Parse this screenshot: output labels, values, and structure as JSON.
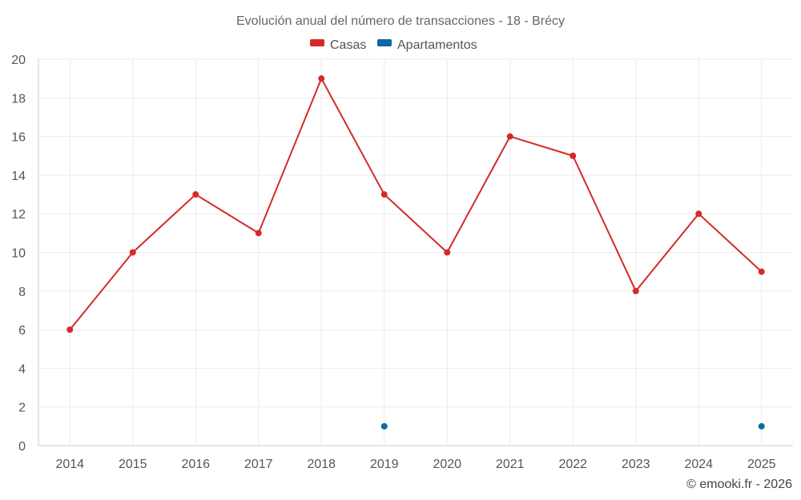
{
  "chart_data": {
    "type": "line",
    "title": "Evolución anual del número de transacciones - 18 - Brécy",
    "categories": [
      "2014",
      "2015",
      "2016",
      "2017",
      "2018",
      "2019",
      "2020",
      "2021",
      "2022",
      "2023",
      "2024",
      "2025"
    ],
    "series": [
      {
        "name": "Casas",
        "color": "#d42a2a",
        "values": [
          6,
          10,
          13,
          11,
          19,
          13,
          10,
          16,
          15,
          8,
          12,
          9
        ]
      },
      {
        "name": "Apartamentos",
        "color": "#0a6aa1",
        "values": [
          null,
          null,
          null,
          null,
          null,
          1,
          null,
          null,
          null,
          null,
          null,
          1
        ]
      }
    ],
    "ylim": [
      0,
      20
    ],
    "yticks": [
      "0",
      "2",
      "4",
      "6",
      "8",
      "10",
      "12",
      "14",
      "16",
      "18",
      "20"
    ],
    "xlabel": "",
    "ylabel": "",
    "grid": true,
    "legend": "top-center"
  },
  "credit": "© emooki.fr - 2026"
}
